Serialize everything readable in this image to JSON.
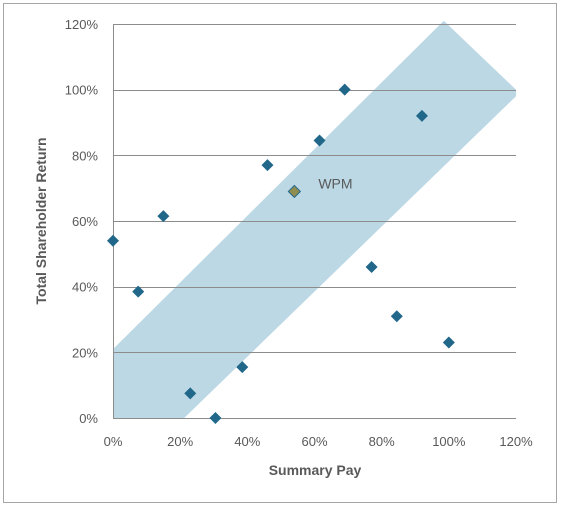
{
  "chart_data": {
    "type": "scatter",
    "title": "",
    "xlabel": "Summary Pay",
    "ylabel": "Total Shareholder Return",
    "xlim": [
      0,
      1.2
    ],
    "ylim": [
      0,
      1.2
    ],
    "x_ticks": [
      0,
      0.2,
      0.4,
      0.6,
      0.8,
      1.0,
      1.2
    ],
    "y_ticks": [
      0,
      0.2,
      0.4,
      0.6,
      0.8,
      1.0,
      1.2
    ],
    "x_tick_labels": [
      "0%",
      "20%",
      "40%",
      "60%",
      "80%",
      "100%",
      "120%"
    ],
    "y_tick_labels": [
      "0%",
      "20%",
      "40%",
      "60%",
      "80%",
      "100%",
      "120%"
    ],
    "grid": {
      "horizontal": true,
      "vertical": false
    },
    "legend": "none",
    "colors": {
      "points": "#21678a",
      "highlight": "#8f8d52",
      "band": "#bcd8e5",
      "grid": "#8c8c8c",
      "text": "#595959"
    },
    "band_polygon": [
      [
        0,
        0.21
      ],
      [
        0.985,
        1.21
      ],
      [
        1.2,
        1.0
      ],
      [
        1.2,
        0.98
      ],
      [
        0.212,
        0
      ],
      [
        0,
        0
      ]
    ],
    "series": [
      {
        "points": [
          {
            "x": 0.0,
            "y": 0.54
          },
          {
            "x": 0.075,
            "y": 0.385
          },
          {
            "x": 0.15,
            "y": 0.615
          },
          {
            "x": 0.23,
            "y": 0.075
          },
          {
            "x": 0.305,
            "y": 0.0
          },
          {
            "x": 0.385,
            "y": 0.155
          },
          {
            "x": 0.46,
            "y": 0.77
          },
          {
            "x": 0.615,
            "y": 0.845
          },
          {
            "x": 0.69,
            "y": 1.0
          },
          {
            "x": 0.77,
            "y": 0.46
          },
          {
            "x": 0.845,
            "y": 0.31
          },
          {
            "x": 0.92,
            "y": 0.92
          },
          {
            "x": 1.0,
            "y": 0.23
          }
        ]
      }
    ],
    "highlight": {
      "label": "WPM",
      "x": 0.54,
      "y": 0.69
    }
  }
}
